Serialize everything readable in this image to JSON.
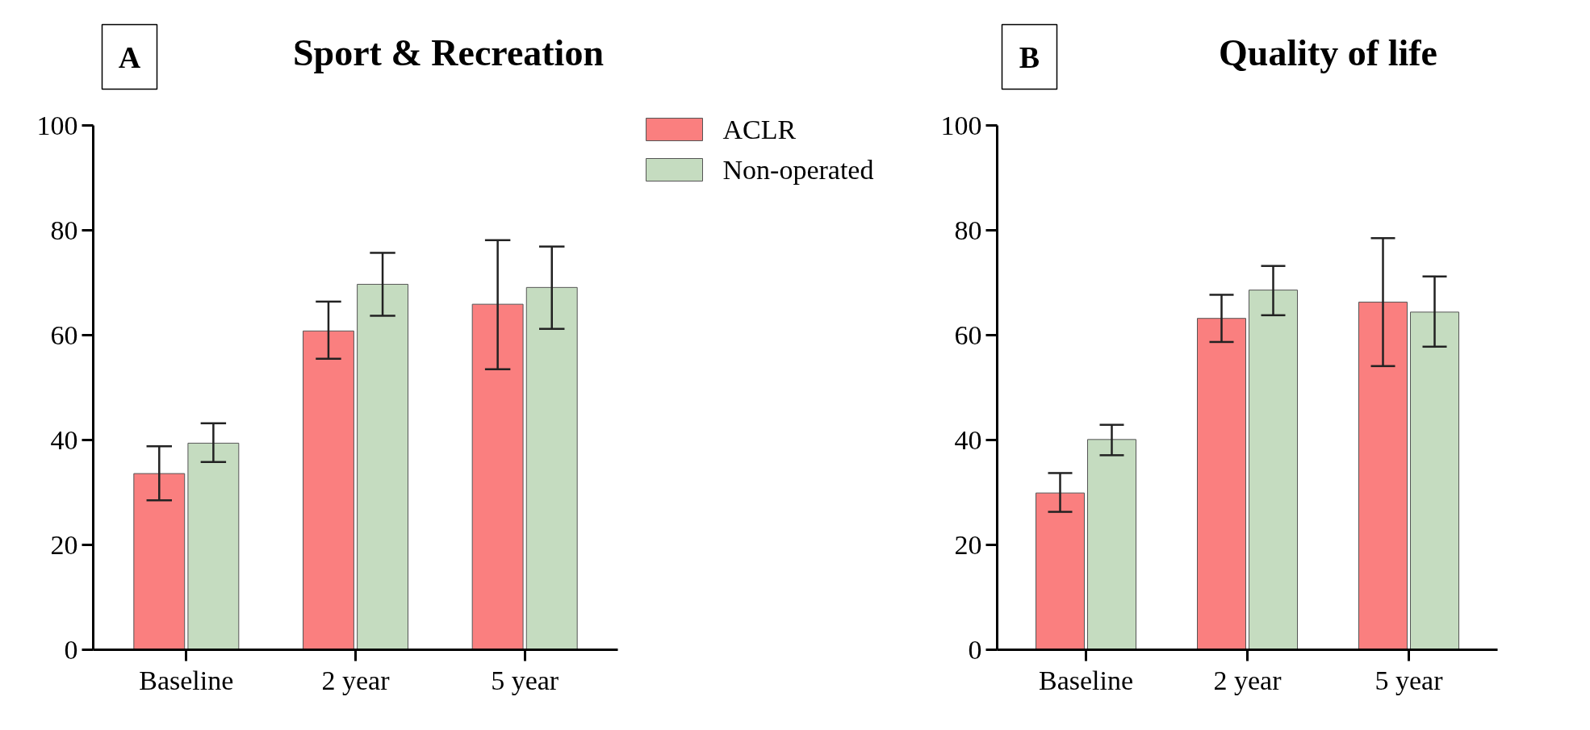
{
  "chart_data": [
    {
      "type": "bar",
      "title": "Sport & Recreation",
      "annotations": [
        "A"
      ],
      "categories": [
        "Baseline",
        "2 year",
        "5 year"
      ],
      "ylim": [
        0,
        100
      ],
      "yticks": [
        0,
        20,
        40,
        60,
        80,
        100
      ],
      "grid": false,
      "legend": "top right",
      "series": [
        {
          "name": "ACLR",
          "color": "#fa7f7f",
          "values": [
            33.6,
            60.8,
            65.9
          ],
          "errors": [
            [
              28.5,
              38.8
            ],
            [
              55.5,
              66.4
            ],
            [
              53.5,
              78.1
            ]
          ]
        },
        {
          "name": "Non-operated",
          "color": "#c5dcc0",
          "values": [
            39.4,
            69.7,
            69.1
          ],
          "errors": [
            [
              35.8,
              43.2
            ],
            [
              63.7,
              75.7
            ],
            [
              61.2,
              76.9
            ]
          ]
        }
      ]
    },
    {
      "type": "bar",
      "title": "Quality of life",
      "annotations": [
        "B"
      ],
      "categories": [
        "Baseline",
        "2 year",
        "5 year"
      ],
      "ylim": [
        0,
        100
      ],
      "yticks": [
        0,
        20,
        40,
        60,
        80,
        100
      ],
      "grid": false,
      "series": [
        {
          "color": "#fa7f7f",
          "values": [
            29.9,
            63.2,
            66.3
          ],
          "errors": [
            [
              26.3,
              33.7
            ],
            [
              58.7,
              67.7
            ],
            [
              54.1,
              78.5
            ]
          ]
        },
        {
          "color": "#c5dcc0",
          "values": [
            40.1,
            68.6,
            64.4
          ],
          "errors": [
            [
              37.1,
              42.9
            ],
            [
              63.8,
              73.2
            ],
            [
              57.8,
              71.2
            ]
          ]
        }
      ]
    }
  ]
}
